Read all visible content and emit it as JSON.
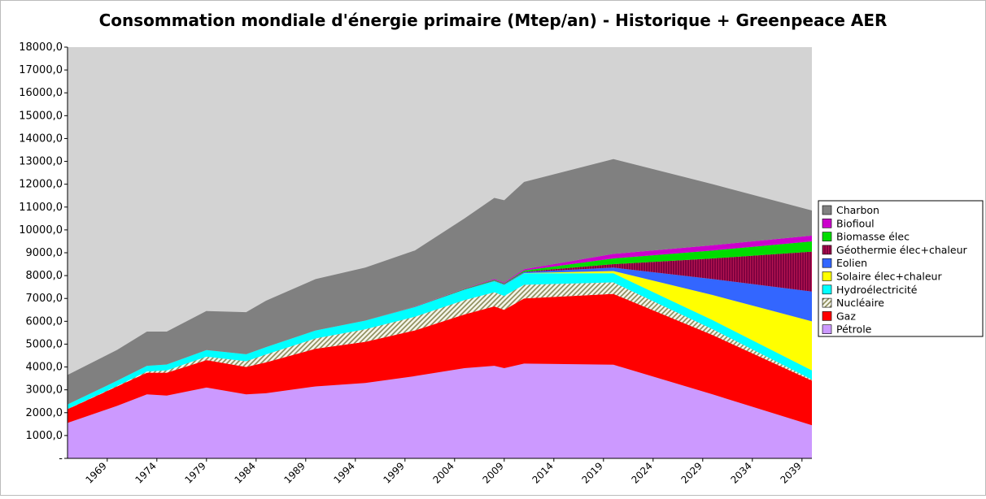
{
  "chart_data": {
    "type": "stacked-area",
    "title": "Consommation mondiale d'énergie primaire (Mtep/an) - Historique + Greenpeace AER",
    "x": [
      1965,
      1970,
      1973,
      1975,
      1979,
      1983,
      1985,
      1990,
      1995,
      2000,
      2005,
      2008,
      2009,
      2011,
      2020,
      2030,
      2040
    ],
    "xlim": [
      1965,
      2040
    ],
    "xticks": [
      1969,
      1974,
      1979,
      1984,
      1989,
      1994,
      1999,
      2004,
      2009,
      2014,
      2019,
      2024,
      2029,
      2034,
      2039
    ],
    "ylim": [
      0,
      18000
    ],
    "yticks": [
      {
        "value": 0,
        "label": "-"
      },
      {
        "value": 1000,
        "label": "1000,0"
      },
      {
        "value": 2000,
        "label": "2000,0"
      },
      {
        "value": 3000,
        "label": "3000,0"
      },
      {
        "value": 4000,
        "label": "4000,0"
      },
      {
        "value": 5000,
        "label": "5000,0"
      },
      {
        "value": 6000,
        "label": "6000,0"
      },
      {
        "value": 7000,
        "label": "7000,0"
      },
      {
        "value": 8000,
        "label": "8000,0"
      },
      {
        "value": 9000,
        "label": "9000,0"
      },
      {
        "value": 10000,
        "label": "10000,0"
      },
      {
        "value": 11000,
        "label": "11000,0"
      },
      {
        "value": 12000,
        "label": "12000,0"
      },
      {
        "value": 13000,
        "label": "13000,0"
      },
      {
        "value": 14000,
        "label": "14000,0"
      },
      {
        "value": 15000,
        "label": "15000,0"
      },
      {
        "value": 16000,
        "label": "16000,0"
      },
      {
        "value": 17000,
        "label": "17000,0"
      },
      {
        "value": 18000,
        "label": "18000,0"
      }
    ],
    "plot_background": "#d3d3d3",
    "legend": "right",
    "series": [
      {
        "name": "Pétrole",
        "color": "#cc99ff",
        "values": [
          1550,
          2300,
          2800,
          2750,
          3100,
          2800,
          2850,
          3150,
          3300,
          3600,
          3950,
          4050,
          3950,
          4150,
          4100,
          2800,
          1450
        ]
      },
      {
        "name": "Gaz",
        "color": "#ff0000",
        "values": [
          600,
          850,
          950,
          1000,
          1200,
          1200,
          1350,
          1650,
          1800,
          2000,
          2350,
          2600,
          2550,
          2850,
          3100,
          2600,
          1950
        ]
      },
      {
        "name": "Nucléaire",
        "color": "#8c8c5a",
        "hatch": "diagonal",
        "values": [
          10,
          20,
          50,
          100,
          150,
          250,
          350,
          450,
          550,
          600,
          630,
          620,
          610,
          600,
          500,
          250,
          50
        ]
      },
      {
        "name": "Hydroélectricité",
        "color": "#00ffff",
        "values": [
          200,
          230,
          250,
          260,
          290,
          310,
          320,
          350,
          380,
          420,
          450,
          480,
          480,
          500,
          400,
          400,
          400
        ]
      },
      {
        "name": "Solaire élec+chaleur",
        "color": "#ffff00",
        "values": [
          0,
          0,
          0,
          0,
          0,
          0,
          0,
          0,
          0,
          0,
          1,
          3,
          4,
          10,
          100,
          1100,
          2150
        ]
      },
      {
        "name": "Eolien",
        "color": "#3366ff",
        "values": [
          0,
          0,
          0,
          0,
          0,
          0,
          0,
          0,
          0,
          5,
          10,
          20,
          25,
          40,
          150,
          700,
          1300
        ]
      },
      {
        "name": "Géothermie élec+chaleur",
        "color": "#800040",
        "hatch": "vertical",
        "values": [
          0,
          0,
          0,
          0,
          0,
          0,
          0,
          0,
          0,
          5,
          10,
          10,
          10,
          20,
          150,
          900,
          1750
        ]
      },
      {
        "name": "Biomasse élec",
        "color": "#00dd00",
        "values": [
          0,
          0,
          0,
          0,
          0,
          0,
          0,
          0,
          0,
          10,
          20,
          30,
          30,
          50,
          250,
          350,
          450
        ]
      },
      {
        "name": "Biofioul",
        "color": "#cc00cc",
        "values": [
          0,
          0,
          0,
          0,
          0,
          0,
          0,
          0,
          0,
          10,
          20,
          40,
          40,
          60,
          200,
          230,
          250
        ]
      },
      {
        "name": "Charbon",
        "color": "#808080",
        "values": [
          1290,
          1350,
          1500,
          1440,
          1710,
          1840,
          2030,
          2250,
          2320,
          2450,
          3060,
          3550,
          3600,
          3820,
          4150,
          2670,
          1100
        ]
      }
    ]
  }
}
